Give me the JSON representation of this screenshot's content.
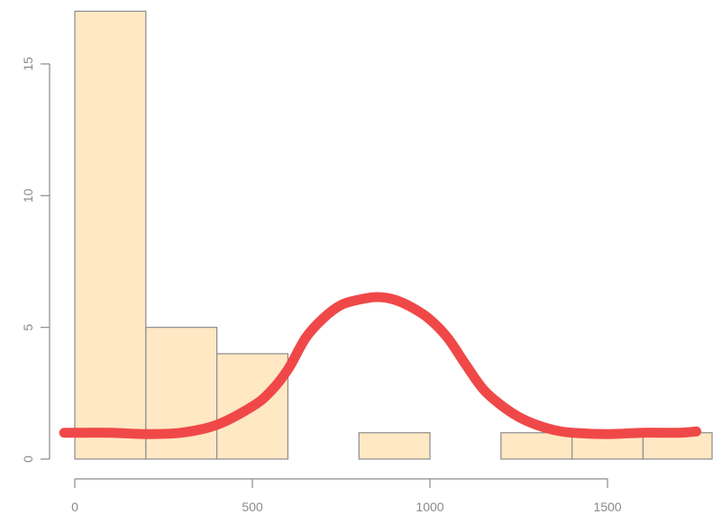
{
  "chart_data": {
    "type": "bar",
    "title": "",
    "xlabel": "",
    "ylabel": "",
    "xlim": [
      -20,
      1790
    ],
    "ylim": [
      0,
      17
    ],
    "x_ticks": [
      0,
      500,
      1000,
      1500
    ],
    "x_tick_labels": [
      "0",
      "500",
      "1000",
      "1500"
    ],
    "y_ticks": [
      0,
      5,
      10,
      15
    ],
    "y_tick_labels": [
      "0",
      "5",
      "10",
      "15"
    ],
    "bins": [
      {
        "from": 0,
        "to": 200,
        "count": 17
      },
      {
        "from": 200,
        "to": 400,
        "count": 5
      },
      {
        "from": 400,
        "to": 600,
        "count": 4
      },
      {
        "from": 600,
        "to": 800,
        "count": 0
      },
      {
        "from": 800,
        "to": 1000,
        "count": 1
      },
      {
        "from": 1000,
        "to": 1200,
        "count": 0
      },
      {
        "from": 1200,
        "to": 1400,
        "count": 1
      },
      {
        "from": 1400,
        "to": 1600,
        "count": 1
      },
      {
        "from": 1600,
        "to": 1800,
        "count": 1
      }
    ],
    "overlay_curve": {
      "type": "line",
      "x": [
        -30,
        0,
        100,
        200,
        300,
        400,
        500,
        550,
        600,
        650,
        700,
        750,
        800,
        850,
        900,
        950,
        1000,
        1050,
        1100,
        1150,
        1200,
        1250,
        1300,
        1350,
        1400,
        1500,
        1600,
        1700,
        1750
      ],
      "y": [
        1.0,
        1.0,
        1.0,
        0.95,
        1.0,
        1.3,
        2.0,
        2.55,
        3.4,
        4.6,
        5.35,
        5.85,
        6.05,
        6.15,
        6.05,
        5.75,
        5.3,
        4.6,
        3.6,
        2.65,
        2.05,
        1.6,
        1.3,
        1.1,
        1.0,
        0.95,
        1.0,
        1.0,
        1.05
      ],
      "color": "#f04848"
    },
    "colors": {
      "bar_fill": "#ffe8c4",
      "bar_stroke": "#8c8c8c",
      "axis": "#8a8a8a",
      "curve": "#f04848"
    },
    "grid": false,
    "legend": "none"
  }
}
